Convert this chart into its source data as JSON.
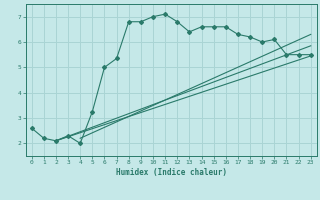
{
  "xlabel": "Humidex (Indice chaleur)",
  "xlim": [
    -0.5,
    23.5
  ],
  "ylim": [
    1.5,
    7.5
  ],
  "xticks": [
    0,
    1,
    2,
    3,
    4,
    5,
    6,
    7,
    8,
    9,
    10,
    11,
    12,
    13,
    14,
    15,
    16,
    17,
    18,
    19,
    20,
    21,
    22,
    23
  ],
  "yticks": [
    2,
    3,
    4,
    5,
    6,
    7
  ],
  "bg_color": "#c5e8e8",
  "grid_color": "#aad4d4",
  "line_color": "#2a7a6a",
  "curve1_x": [
    0,
    1,
    2,
    3,
    4,
    5,
    6,
    7,
    8,
    9,
    10,
    11,
    12,
    13,
    14,
    15,
    16,
    17,
    18,
    19,
    20,
    21,
    22,
    23
  ],
  "curve1_y": [
    2.6,
    2.2,
    2.1,
    2.3,
    2.0,
    3.25,
    5.0,
    5.35,
    6.8,
    6.8,
    7.0,
    7.1,
    6.8,
    6.4,
    6.6,
    6.6,
    6.6,
    6.3,
    6.2,
    6.0,
    6.1,
    5.5,
    5.5,
    5.5
  ],
  "line2_x": [
    2,
    23
  ],
  "line2_y": [
    2.1,
    5.45
  ],
  "line3_x": [
    2,
    23
  ],
  "line3_y": [
    2.1,
    5.85
  ],
  "line4_x": [
    4,
    23
  ],
  "line4_y": [
    2.2,
    6.3
  ]
}
